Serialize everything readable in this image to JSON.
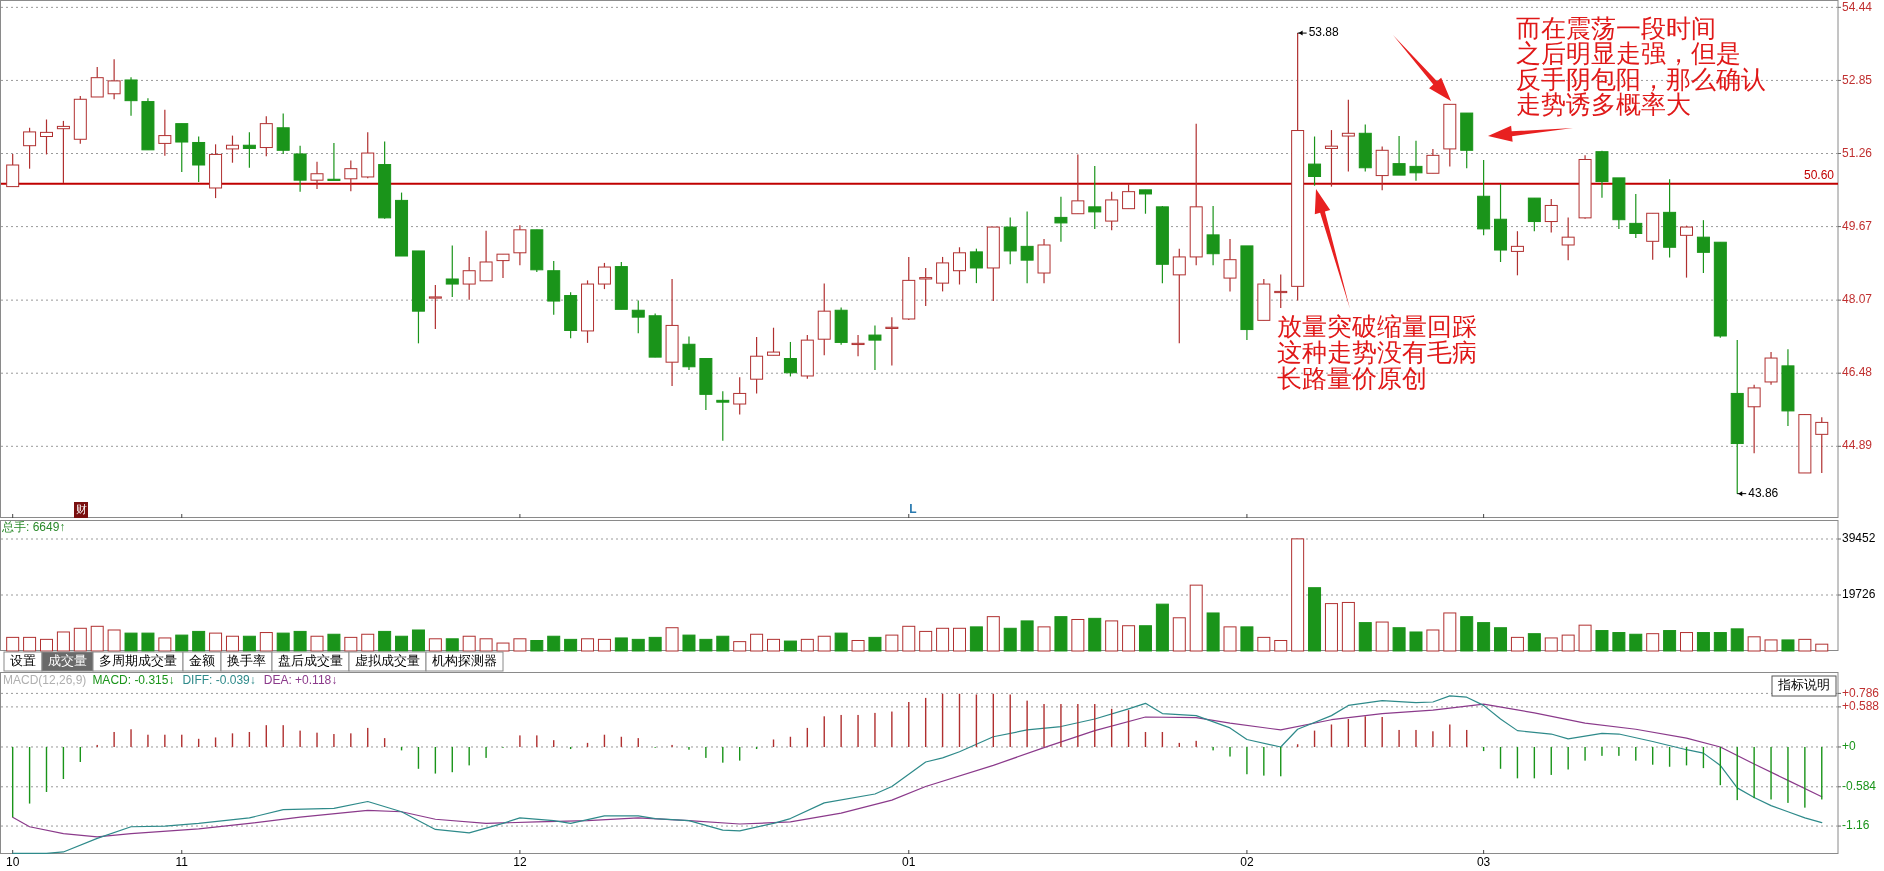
{
  "chart_data": [
    {
      "type": "candlestick",
      "categories": [
        "10",
        null,
        null,
        null,
        null,
        null,
        null,
        null,
        null,
        null,
        "11",
        null,
        null,
        null,
        null,
        null,
        null,
        null,
        null,
        null,
        null,
        null,
        null,
        null,
        null,
        null,
        null,
        null,
        null,
        null,
        "12",
        null,
        null,
        null,
        null,
        null,
        null,
        null,
        null,
        null,
        null,
        null,
        null,
        null,
        null,
        null,
        null,
        null,
        null,
        null,
        null,
        null,
        null,
        "01",
        null,
        null,
        null,
        null,
        null,
        null,
        null,
        null,
        null,
        null,
        null,
        null,
        null,
        null,
        null,
        null,
        null,
        null,
        null,
        "02",
        null,
        null,
        null,
        null,
        null,
        null,
        null,
        null,
        null,
        null,
        null,
        null,
        null,
        "03",
        null,
        null,
        null,
        null,
        null,
        null,
        null,
        null,
        null,
        null,
        null,
        null,
        null,
        null,
        null,
        null,
        null,
        null,
        null,
        null
      ],
      "ylim": [
        43.33,
        54.6
      ],
      "yticks": [
        44.89,
        46.48,
        48.07,
        49.67,
        51.26,
        52.85,
        54.44
      ],
      "grid": "y",
      "tick_labels": "y",
      "ohlc": [
        [
          50.54,
          51.25,
          50.54,
          51.01
        ],
        [
          51.43,
          51.82,
          50.93,
          51.73
        ],
        [
          51.63,
          52.0,
          51.24,
          51.72
        ],
        [
          51.8,
          51.97,
          50.62,
          51.85
        ],
        [
          51.57,
          52.51,
          51.47,
          52.44
        ],
        [
          52.49,
          53.14,
          52.49,
          52.91
        ],
        [
          52.56,
          53.31,
          52.44,
          52.84
        ],
        [
          52.86,
          52.92,
          52.08,
          52.41
        ],
        [
          52.39,
          52.46,
          51.34,
          51.34
        ],
        [
          51.48,
          52.21,
          51.21,
          51.65
        ],
        [
          51.91,
          51.91,
          50.86,
          51.51
        ],
        [
          51.5,
          51.63,
          50.64,
          51.01
        ],
        [
          50.51,
          51.46,
          50.29,
          51.24
        ],
        [
          51.36,
          51.65,
          51.06,
          51.44
        ],
        [
          51.44,
          51.72,
          50.95,
          51.37
        ],
        [
          51.39,
          52.07,
          51.2,
          51.91
        ],
        [
          51.82,
          52.13,
          51.25,
          51.33
        ],
        [
          51.25,
          51.43,
          50.43,
          50.68
        ],
        [
          50.68,
          51.08,
          50.49,
          50.82
        ],
        [
          50.7,
          51.49,
          50.68,
          50.68
        ],
        [
          50.71,
          51.11,
          50.44,
          50.93
        ],
        [
          50.75,
          51.72,
          50.72,
          51.27
        ],
        [
          51.02,
          51.52,
          49.84,
          49.86
        ],
        [
          50.24,
          50.41,
          49.03,
          49.03
        ],
        [
          49.14,
          49.14,
          47.13,
          47.83
        ],
        [
          48.12,
          48.4,
          47.44,
          48.14
        ],
        [
          48.53,
          49.26,
          48.14,
          48.42
        ],
        [
          48.42,
          49.01,
          48.08,
          48.71
        ],
        [
          48.49,
          49.58,
          48.49,
          48.9
        ],
        [
          48.93,
          49.07,
          48.55,
          49.07
        ],
        [
          49.1,
          49.7,
          48.83,
          49.6
        ],
        [
          49.6,
          49.6,
          48.68,
          48.73
        ],
        [
          48.71,
          48.92,
          47.75,
          48.05
        ],
        [
          48.17,
          48.24,
          47.24,
          47.41
        ],
        [
          47.4,
          48.5,
          47.14,
          48.42
        ],
        [
          48.42,
          48.88,
          48.31,
          48.79
        ],
        [
          48.8,
          48.9,
          47.87,
          47.87
        ],
        [
          47.85,
          48.06,
          47.35,
          47.7
        ],
        [
          47.73,
          47.78,
          46.83,
          46.83
        ],
        [
          46.72,
          48.53,
          46.2,
          47.52
        ],
        [
          47.11,
          47.28,
          46.55,
          46.62
        ],
        [
          46.8,
          46.8,
          45.68,
          46.02
        ],
        [
          45.89,
          46.09,
          45.01,
          45.85
        ],
        [
          45.81,
          46.39,
          45.58,
          46.04
        ],
        [
          46.35,
          47.27,
          46.04,
          46.85
        ],
        [
          46.87,
          47.47,
          46.87,
          46.94
        ],
        [
          46.8,
          47.16,
          46.41,
          46.49
        ],
        [
          46.42,
          47.31,
          46.36,
          47.2
        ],
        [
          47.22,
          48.43,
          46.87,
          47.83
        ],
        [
          47.85,
          47.91,
          47.1,
          47.15
        ],
        [
          47.11,
          47.31,
          46.85,
          47.13
        ],
        [
          47.31,
          47.52,
          46.55,
          47.2
        ],
        [
          47.46,
          47.7,
          46.65,
          47.48
        ],
        [
          47.66,
          49.01,
          47.64,
          48.5
        ],
        [
          48.53,
          48.77,
          47.94,
          48.56
        ],
        [
          48.44,
          49.01,
          48.26,
          48.88
        ],
        [
          48.71,
          49.22,
          48.41,
          49.1
        ],
        [
          49.12,
          49.19,
          48.44,
          48.77
        ],
        [
          48.77,
          49.66,
          48.05,
          49.66
        ],
        [
          49.66,
          49.87,
          48.85,
          49.14
        ],
        [
          49.24,
          50.0,
          48.44,
          48.94
        ],
        [
          48.66,
          49.4,
          48.44,
          49.27
        ],
        [
          49.87,
          50.32,
          49.34,
          49.75
        ],
        [
          49.95,
          51.24,
          49.95,
          50.23
        ],
        [
          50.1,
          50.99,
          49.62,
          49.99
        ],
        [
          49.79,
          50.43,
          49.59,
          50.25
        ],
        [
          50.06,
          50.6,
          50.06,
          50.43
        ],
        [
          50.47,
          50.47,
          49.95,
          50.38
        ],
        [
          50.1,
          50.12,
          48.44,
          48.85
        ],
        [
          48.62,
          49.19,
          47.13,
          49.01
        ],
        [
          49.01,
          51.91,
          48.83,
          50.1
        ],
        [
          49.49,
          50.12,
          48.83,
          49.08
        ],
        [
          48.55,
          49.4,
          48.26,
          48.95
        ],
        [
          49.25,
          49.25,
          47.2,
          47.43
        ],
        [
          47.63,
          48.53,
          47.63,
          48.42
        ],
        [
          48.24,
          48.63,
          47.9,
          48.26
        ],
        [
          48.37,
          53.88,
          48.06,
          51.76
        ],
        [
          51.03,
          51.63,
          50.56,
          50.76
        ],
        [
          51.37,
          51.77,
          50.54,
          51.42
        ],
        [
          51.64,
          52.43,
          50.87,
          51.7
        ],
        [
          51.7,
          51.89,
          50.87,
          50.95
        ],
        [
          50.78,
          51.41,
          50.46,
          51.33
        ],
        [
          51.04,
          51.64,
          50.79,
          50.79
        ],
        [
          50.98,
          51.54,
          50.67,
          50.84
        ],
        [
          50.83,
          51.36,
          50.83,
          51.22
        ],
        [
          51.36,
          52.33,
          50.98,
          52.33
        ],
        [
          52.14,
          52.14,
          50.94,
          51.33
        ],
        [
          50.33,
          51.12,
          49.48,
          49.62
        ],
        [
          49.83,
          50.6,
          48.9,
          49.16
        ],
        [
          49.13,
          49.57,
          48.61,
          49.24
        ],
        [
          50.29,
          50.29,
          49.57,
          49.78
        ],
        [
          49.78,
          50.27,
          49.54,
          50.13
        ],
        [
          49.27,
          49.87,
          48.94,
          49.44
        ],
        [
          49.86,
          51.22,
          49.84,
          51.13
        ],
        [
          51.3,
          51.32,
          50.3,
          50.65
        ],
        [
          50.73,
          50.73,
          49.62,
          49.82
        ],
        [
          49.74,
          50.38,
          49.42,
          49.52
        ],
        [
          49.35,
          49.96,
          48.95,
          49.96
        ],
        [
          49.98,
          50.7,
          49.0,
          49.22
        ],
        [
          49.48,
          49.69,
          48.56,
          49.66
        ],
        [
          49.44,
          49.81,
          48.66,
          49.11
        ],
        [
          49.33,
          49.33,
          47.25,
          47.29
        ],
        [
          46.04,
          47.2,
          43.86,
          44.95
        ],
        [
          45.75,
          46.23,
          44.74,
          46.16
        ],
        [
          46.29,
          46.94,
          46.23,
          46.81
        ],
        [
          46.64,
          47.0,
          45.33,
          45.66
        ],
        [
          44.31,
          45.59,
          44.31,
          45.58
        ],
        [
          45.15,
          45.52,
          44.31,
          45.41
        ]
      ],
      "colors": [
        "#b03030",
        "#b03030",
        "#b03030",
        "#b03030",
        "#b03030",
        "#b03030",
        "#b03030",
        "#1a941a",
        "#1a941a",
        "#b03030",
        "#1a941a",
        "#1a941a",
        "#b03030",
        "#b03030",
        "#1a941a",
        "#b03030",
        "#1a941a",
        "#1a941a",
        "#b03030",
        "#1a941a",
        "#b03030",
        "#b03030",
        "#1a941a",
        "#1a941a",
        "#1a941a",
        "#b03030",
        "#1a941a",
        "#b03030",
        "#b03030",
        "#b03030",
        "#b03030",
        "#1a941a",
        "#1a941a",
        "#1a941a",
        "#b03030",
        "#b03030",
        "#1a941a",
        "#1a941a",
        "#1a941a",
        "#b03030",
        "#1a941a",
        "#1a941a",
        "#1a941a",
        "#b03030",
        "#b03030",
        "#b03030",
        "#1a941a",
        "#b03030",
        "#b03030",
        "#1a941a",
        "#b03030",
        "#1a941a",
        "#b03030",
        "#b03030",
        "#b03030",
        "#b03030",
        "#b03030",
        "#1a941a",
        "#b03030",
        "#1a941a",
        "#1a941a",
        "#b03030",
        "#1a941a",
        "#b03030",
        "#1a941a",
        "#b03030",
        "#b03030",
        "#1a941a",
        "#1a941a",
        "#b03030",
        "#b03030",
        "#1a941a",
        "#b03030",
        "#1a941a",
        "#b03030",
        "#b03030",
        "#b03030",
        "#1a941a",
        "#b03030",
        "#b03030",
        "#1a941a",
        "#b03030",
        "#1a941a",
        "#1a941a",
        "#b03030",
        "#b03030",
        "#1a941a",
        "#1a941a",
        "#1a941a",
        "#b03030",
        "#1a941a",
        "#b03030",
        "#b03030",
        "#b03030",
        "#1a941a",
        "#1a941a",
        "#1a941a",
        "#b03030",
        "#1a941a",
        "#b03030",
        "#1a941a",
        "#1a941a",
        "#1a941a",
        "#b03030",
        "#b03030",
        "#1a941a",
        "#b03030",
        "#b03030"
      ],
      "ref_lines": [
        {
          "axis": "y",
          "value": 50.6,
          "label": "50.60",
          "color": "#c00000"
        }
      ],
      "annotations": [
        "53.88",
        "43.86",
        "放量突破缩量回踩",
        "这种走势没有毛病",
        "长路量价原创",
        "而在震荡一段时间",
        "之后明显走强，但是",
        "反手阴包阳，那么确认",
        "走势诱多概率大",
        "财",
        "L"
      ]
    },
    {
      "type": "bar",
      "categories": [
        "10",
        null,
        null,
        null,
        null,
        null,
        null,
        null,
        null,
        null,
        "11",
        null,
        null,
        null,
        null,
        null,
        null,
        null,
        null,
        null,
        null,
        null,
        null,
        null,
        null,
        null,
        null,
        null,
        null,
        null,
        "12",
        null,
        null,
        null,
        null,
        null,
        null,
        null,
        null,
        null,
        null,
        null,
        null,
        null,
        null,
        null,
        null,
        null,
        null,
        null,
        null,
        null,
        null,
        "01",
        null,
        null,
        null,
        null,
        null,
        null,
        null,
        null,
        null,
        null,
        null,
        null,
        null,
        null,
        null,
        null,
        null,
        null,
        null,
        "02",
        null,
        null,
        null,
        null,
        null,
        null,
        null,
        null,
        null,
        null,
        null,
        null,
        null,
        "03",
        null,
        null,
        null,
        null,
        null,
        null,
        null,
        null,
        null,
        null,
        null,
        null,
        null,
        null,
        null,
        null,
        null,
        null,
        null,
        null
      ],
      "ylim": [
        0,
        46150
      ],
      "yticks": [
        19726,
        39452
      ],
      "grid": "y",
      "tick_labels": "y",
      "values": [
        4800,
        4800,
        4100,
        6700,
        8000,
        8700,
        7400,
        6300,
        6300,
        4600,
        5600,
        6900,
        6300,
        5200,
        5200,
        6500,
        6300,
        6900,
        5200,
        5900,
        4800,
        5900,
        6900,
        5200,
        7400,
        4300,
        4300,
        5200,
        4300,
        2800,
        4300,
        3700,
        5200,
        4100,
        4300,
        4100,
        4600,
        4100,
        4800,
        8200,
        5600,
        4100,
        5200,
        3300,
        5900,
        4100,
        3500,
        4100,
        5200,
        6300,
        3700,
        4800,
        5600,
        8700,
        6900,
        8000,
        8000,
        8500,
        12100,
        8000,
        10600,
        8500,
        12100,
        11100,
        11500,
        10600,
        8900,
        8900,
        16500,
        11700,
        23200,
        13400,
        8500,
        8500,
        4800,
        3700,
        39500,
        22300,
        16700,
        17100,
        10000,
        10200,
        8200,
        6700,
        7400,
        13400,
        12100,
        10000,
        8200,
        4800,
        6100,
        4600,
        5600,
        9100,
        7200,
        6500,
        5900,
        6100,
        7200,
        6500,
        6500,
        6500,
        7800,
        5000,
        3900,
        3900,
        4100,
        2400
      ],
      "colors": [
        "#b03030",
        "#b03030",
        "#b03030",
        "#b03030",
        "#b03030",
        "#b03030",
        "#b03030",
        "#1a941a",
        "#1a941a",
        "#b03030",
        "#1a941a",
        "#1a941a",
        "#b03030",
        "#b03030",
        "#1a941a",
        "#b03030",
        "#1a941a",
        "#1a941a",
        "#b03030",
        "#1a941a",
        "#b03030",
        "#b03030",
        "#1a941a",
        "#1a941a",
        "#1a941a",
        "#b03030",
        "#1a941a",
        "#b03030",
        "#b03030",
        "#b03030",
        "#b03030",
        "#1a941a",
        "#1a941a",
        "#1a941a",
        "#b03030",
        "#b03030",
        "#1a941a",
        "#1a941a",
        "#1a941a",
        "#b03030",
        "#1a941a",
        "#1a941a",
        "#1a941a",
        "#b03030",
        "#b03030",
        "#b03030",
        "#1a941a",
        "#b03030",
        "#b03030",
        "#1a941a",
        "#b03030",
        "#1a941a",
        "#b03030",
        "#b03030",
        "#b03030",
        "#b03030",
        "#b03030",
        "#1a941a",
        "#b03030",
        "#1a941a",
        "#1a941a",
        "#b03030",
        "#1a941a",
        "#b03030",
        "#1a941a",
        "#b03030",
        "#b03030",
        "#1a941a",
        "#1a941a",
        "#b03030",
        "#b03030",
        "#1a941a",
        "#b03030",
        "#1a941a",
        "#b03030",
        "#b03030",
        "#b03030",
        "#1a941a",
        "#b03030",
        "#b03030",
        "#1a941a",
        "#b03030",
        "#1a941a",
        "#1a941a",
        "#b03030",
        "#b03030",
        "#1a941a",
        "#1a941a",
        "#1a941a",
        "#b03030",
        "#1a941a",
        "#b03030",
        "#b03030",
        "#b03030",
        "#1a941a",
        "#1a941a",
        "#1a941a",
        "#b03030",
        "#1a941a",
        "#b03030",
        "#1a941a",
        "#1a941a",
        "#1a941a",
        "#b03030",
        "#b03030",
        "#1a941a",
        "#b03030",
        "#b03030"
      ],
      "annotations": [
        "总手: 6649↑",
        "设置",
        "成交量",
        "多周期成交量",
        "金额",
        "换手率",
        "盘后成交量",
        "虚拟成交量",
        "机构探测器"
      ]
    },
    {
      "type": "bar",
      "title": "MACD(12,26,9)",
      "categories": [
        "10",
        null,
        null,
        null,
        null,
        null,
        null,
        null,
        null,
        null,
        "11",
        null,
        null,
        null,
        null,
        null,
        null,
        null,
        null,
        null,
        null,
        null,
        null,
        null,
        null,
        null,
        null,
        null,
        null,
        null,
        "12",
        null,
        null,
        null,
        null,
        null,
        null,
        null,
        null,
        null,
        null,
        null,
        null,
        null,
        null,
        null,
        null,
        null,
        null,
        null,
        null,
        null,
        null,
        "01",
        null,
        null,
        null,
        null,
        null,
        null,
        null,
        null,
        null,
        null,
        null,
        null,
        null,
        null,
        null,
        null,
        null,
        null,
        null,
        "02",
        null,
        null,
        null,
        null,
        null,
        null,
        null,
        null,
        null,
        null,
        null,
        null,
        null,
        "03",
        null,
        null,
        null,
        null,
        null,
        null,
        null,
        null,
        null,
        null,
        null,
        null,
        null,
        null,
        null,
        null,
        null,
        null,
        null,
        null
      ],
      "ylim": [
        -1.57,
        1.1
      ],
      "yticks": [
        {
          "value": 0.786,
          "label": "+0.786"
        },
        {
          "value": 0.588,
          "label": "+0.588"
        },
        {
          "value": 0,
          "label": "+0"
        },
        {
          "value": -0.584,
          "label": "-0.584"
        },
        {
          "value": -1.16,
          "label": "-1.16"
        }
      ],
      "grid": "y",
      "legend": "top left",
      "annotations": [
        "指标说明"
      ],
      "series": [
        {
          "name": "MACD: -0.315↓",
          "color": "#1a941a",
          "values": [
            -1.03,
            -0.83,
            -0.66,
            -0.47,
            -0.22,
            0.03,
            0.22,
            0.26,
            0.18,
            0.18,
            0.18,
            0.12,
            0.14,
            0.2,
            0.22,
            0.32,
            0.32,
            0.24,
            0.21,
            0.19,
            0.2,
            0.28,
            0.13,
            -0.05,
            -0.32,
            -0.39,
            -0.37,
            -0.27,
            -0.16,
            -0.01,
            0.17,
            0.17,
            0.1,
            -0.03,
            0.06,
            0.18,
            0.15,
            0.13,
            -0.01,
            0.03,
            -0.04,
            -0.16,
            -0.23,
            -0.2,
            -0.03,
            0.11,
            0.15,
            0.28,
            0.45,
            0.47,
            0.47,
            0.5,
            0.52,
            0.66,
            0.72,
            0.78,
            0.78,
            0.77,
            0.78,
            0.77,
            0.68,
            0.63,
            0.63,
            0.63,
            0.63,
            0.56,
            0.54,
            0.22,
            0.22,
            0.06,
            0.09,
            -0.05,
            -0.14,
            -0.4,
            -0.42,
            -0.43,
            0.04,
            0.24,
            0.33,
            0.41,
            0.45,
            0.44,
            0.25,
            0.25,
            0.23,
            0.33,
            0.25,
            -0.06,
            -0.32,
            -0.46,
            -0.46,
            -0.41,
            -0.33,
            -0.2,
            -0.13,
            -0.13,
            -0.2,
            -0.26,
            -0.29,
            -0.27,
            -0.31,
            -0.56,
            -0.78,
            -0.75,
            -0.77,
            -0.82,
            -0.89,
            -0.77
          ],
          "colors": [
            "#1a941a",
            "#1a941a",
            "#1a941a",
            "#1a941a",
            "#1a941a",
            "#b03030",
            "#b03030",
            "#b03030",
            "#b03030",
            "#b03030",
            "#b03030",
            "#b03030",
            "#b03030",
            "#b03030",
            "#b03030",
            "#b03030",
            "#b03030",
            "#b03030",
            "#b03030",
            "#b03030",
            "#b03030",
            "#b03030",
            "#b03030",
            "#1a941a",
            "#1a941a",
            "#1a941a",
            "#1a941a",
            "#1a941a",
            "#1a941a",
            "#1a941a",
            "#b03030",
            "#b03030",
            "#b03030",
            "#1a941a",
            "#b03030",
            "#b03030",
            "#b03030",
            "#b03030",
            "#1a941a",
            "#b03030",
            "#1a941a",
            "#1a941a",
            "#1a941a",
            "#1a941a",
            "#1a941a",
            "#b03030",
            "#b03030",
            "#b03030",
            "#b03030",
            "#b03030",
            "#b03030",
            "#b03030",
            "#b03030",
            "#b03030",
            "#b03030",
            "#b03030",
            "#b03030",
            "#b03030",
            "#b03030",
            "#b03030",
            "#b03030",
            "#b03030",
            "#b03030",
            "#b03030",
            "#b03030",
            "#b03030",
            "#b03030",
            "#b03030",
            "#b03030",
            "#b03030",
            "#b03030",
            "#1a941a",
            "#1a941a",
            "#1a941a",
            "#1a941a",
            "#1a941a",
            "#b03030",
            "#b03030",
            "#b03030",
            "#b03030",
            "#b03030",
            "#b03030",
            "#b03030",
            "#b03030",
            "#b03030",
            "#b03030",
            "#b03030",
            "#1a941a",
            "#1a941a",
            "#1a941a",
            "#1a941a",
            "#1a941a",
            "#1a941a",
            "#1a941a",
            "#1a941a",
            "#1a941a",
            "#1a941a",
            "#1a941a",
            "#1a941a",
            "#1a941a",
            "#1a941a",
            "#1a941a",
            "#1a941a",
            "#1a941a",
            "#1a941a",
            "#1a941a",
            "#1a941a",
            "#1a941a"
          ]
        },
        {
          "name": "DIFF: -0.039↓",
          "type": "line",
          "color": "#2e8a8a",
          "values": [
            -1.56,
            null,
            -1.56,
            -1.54,
            null,
            -1.34,
            null,
            -1.17,
            null,
            -1.16,
            null,
            -1.12,
            null,
            null,
            -1.04,
            null,
            -0.92,
            null,
            null,
            -0.9,
            null,
            -0.8,
            null,
            -0.95,
            null,
            -1.21,
            null,
            -1.26,
            null,
            -1.12,
            -1.04,
            null,
            -1.08,
            -1.12,
            null,
            -1.01,
            null,
            -1.01,
            -1.05,
            null,
            -1.08,
            null,
            -1.22,
            -1.23,
            null,
            -1.12,
            -1.05,
            null,
            -0.82,
            null,
            null,
            -0.69,
            -0.58,
            null,
            -0.22,
            -0.16,
            -0.07,
            null,
            0.15,
            null,
            0.25,
            null,
            0.3,
            null,
            0.41,
            null,
            0.56,
            0.64,
            0.49,
            null,
            0.46,
            null,
            0.28,
            0.11,
            null,
            0.0,
            0.26,
            null,
            0.46,
            0.61,
            null,
            0.68,
            null,
            0.65,
            0.66,
            0.75,
            0.73,
            0.61,
            0.41,
            0.24,
            null,
            0.19,
            0.12,
            null,
            0.2,
            0.19,
            null,
            0.08,
            null,
            -0.04,
            -0.09,
            -0.27,
            -0.6,
            -0.74,
            -0.86,
            -0.95,
            -1.04,
            -1.11
          ]
        },
        {
          "name": "DEA: +0.118↓",
          "type": "line",
          "color": "#8b3a8b",
          "values": [
            -1.03,
            -1.17,
            null,
            -1.27,
            null,
            -1.32,
            null,
            -1.27,
            null,
            null,
            null,
            -1.2,
            null,
            null,
            -1.12,
            null,
            null,
            -1.03,
            null,
            null,
            null,
            -0.93,
            null,
            -0.95,
            null,
            -1.06,
            null,
            null,
            -1.12,
            null,
            null,
            -1.1,
            null,
            null,
            -1.08,
            null,
            null,
            -1.04,
            null,
            null,
            -1.08,
            null,
            null,
            -1.13,
            null,
            null,
            -1.1,
            null,
            null,
            -0.97,
            null,
            null,
            -0.78,
            null,
            -0.58,
            null,
            null,
            null,
            -0.27,
            null,
            null,
            -0.01,
            null,
            null,
            0.24,
            null,
            null,
            0.44,
            null,
            null,
            0.43,
            null,
            0.35,
            null,
            null,
            0.25,
            null,
            null,
            0.4,
            null,
            null,
            0.49,
            null,
            null,
            0.54,
            null,
            null,
            0.63,
            null,
            null,
            0.5,
            null,
            null,
            0.35,
            null,
            null,
            0.26,
            null,
            null,
            0.13,
            null,
            0.0,
            null,
            -0.25,
            null,
            -0.49,
            null,
            -0.73
          ]
        }
      ]
    }
  ]
}
